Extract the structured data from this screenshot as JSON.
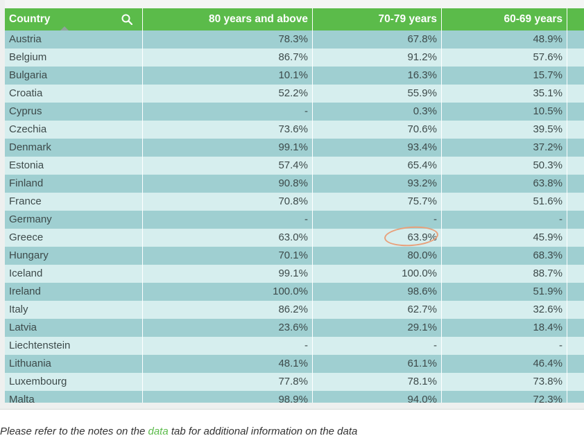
{
  "header": {
    "country": "Country",
    "col1": "80 years and above",
    "col2": "70-79 years",
    "col3": "60-69 years"
  },
  "rows": [
    [
      "Austria",
      "78.3%",
      "67.8%",
      "48.9%"
    ],
    [
      "Belgium",
      "86.7%",
      "91.2%",
      "57.6%"
    ],
    [
      "Bulgaria",
      "10.1%",
      "16.3%",
      "15.7%"
    ],
    [
      "Croatia",
      "52.2%",
      "55.9%",
      "35.1%"
    ],
    [
      "Cyprus",
      "-",
      "0.3%",
      "10.5%"
    ],
    [
      "Czechia",
      "73.6%",
      "70.6%",
      "39.5%"
    ],
    [
      "Denmark",
      "99.1%",
      "93.4%",
      "37.2%"
    ],
    [
      "Estonia",
      "57.4%",
      "65.4%",
      "50.3%"
    ],
    [
      "Finland",
      "90.8%",
      "93.2%",
      "63.8%"
    ],
    [
      "France",
      "70.8%",
      "75.7%",
      "51.6%"
    ],
    [
      "Germany",
      "-",
      "-",
      "-"
    ],
    [
      "Greece",
      "63.0%",
      "63.9%",
      "45.9%"
    ],
    [
      "Hungary",
      "70.1%",
      "80.0%",
      "68.3%"
    ],
    [
      "Iceland",
      "99.1%",
      "100.0%",
      "88.7%"
    ],
    [
      "Ireland",
      "100.0%",
      "98.6%",
      "51.9%"
    ],
    [
      "Italy",
      "86.2%",
      "62.7%",
      "32.6%"
    ],
    [
      "Latvia",
      "23.6%",
      "29.1%",
      "18.4%"
    ],
    [
      "Liechtenstein",
      "-",
      "-",
      "-"
    ],
    [
      "Lithuania",
      "48.1%",
      "61.1%",
      "46.4%"
    ],
    [
      "Luxembourg",
      "77.8%",
      "78.1%",
      "73.8%"
    ],
    [
      "Malta",
      "98.9%",
      "94.0%",
      "72.3%"
    ]
  ],
  "footnote": {
    "before": "Please refer to the notes on the ",
    "link": "data",
    "after": " tab for additional information on the data"
  },
  "colors": {
    "header": "#5bbb4a",
    "row_dark": "#9fcfd1",
    "row_light": "#d6eeee",
    "annotation": "#e8a07a"
  },
  "icons": [
    "search-icon",
    "sort-ascending-icon"
  ]
}
